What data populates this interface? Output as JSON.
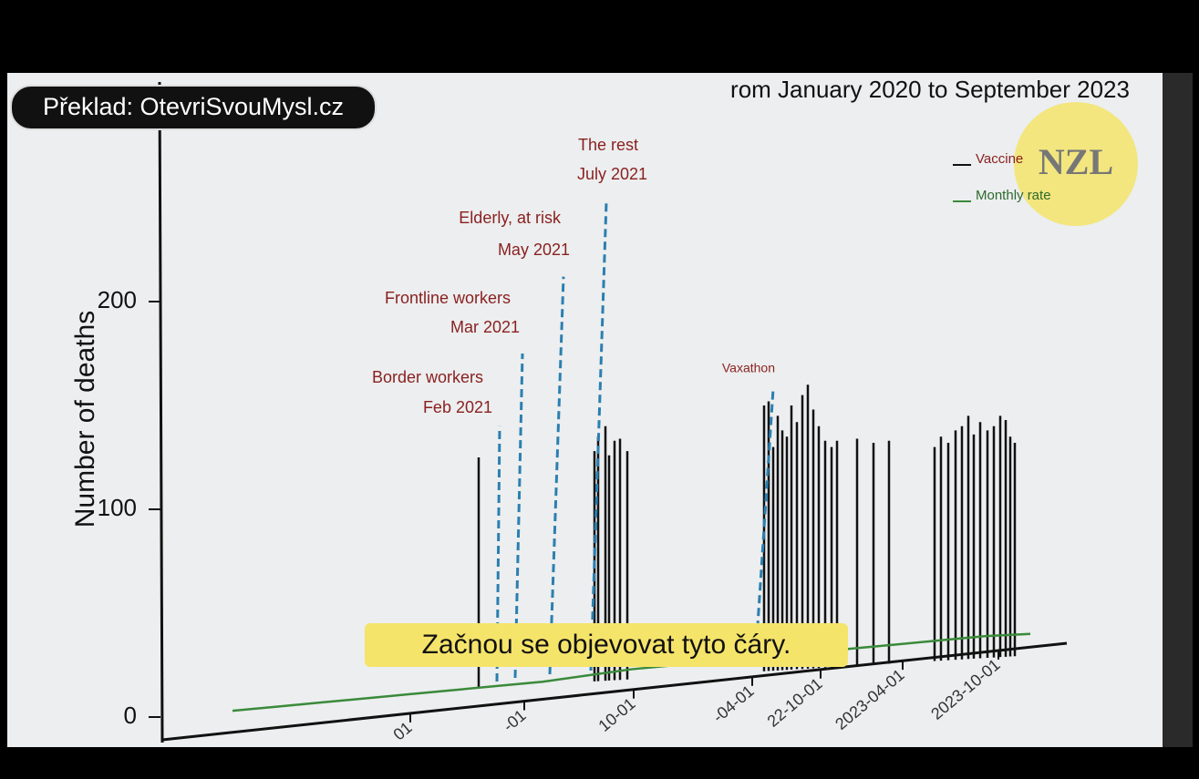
{
  "overlay": {
    "credit": "Překlad: OtevriSvouMysl.cz",
    "subtitle": "Začnou se objevovat tyto čáry.",
    "logo": "NZL"
  },
  "chart_data": {
    "type": "bar",
    "title": "rom January 2020 to September 2023",
    "y_label": "Number of deaths",
    "ylim": [
      0,
      300
    ],
    "yticks": [
      0,
      100,
      200
    ],
    "x_tick_labels": [
      "01",
      "-01",
      "10-01",
      "-04-01",
      "22-10-01",
      "2023-04-01",
      "2023-10-01"
    ],
    "series": [
      {
        "name": "Vaccine",
        "color": "#111111",
        "values": [
          125,
          128,
          135,
          140,
          126,
          133,
          134,
          128,
          150,
          152,
          130,
          145,
          138,
          135,
          150,
          142,
          155,
          160,
          148,
          140,
          133,
          130,
          133,
          134,
          132,
          133,
          130,
          135,
          132,
          138,
          140,
          145,
          136,
          142,
          138,
          140,
          145,
          143,
          135,
          132
        ]
      },
      {
        "name": "Monthly rate",
        "color": "#3a8a3a",
        "values": [
          3,
          5,
          7,
          9,
          11,
          13,
          15,
          17,
          20,
          23,
          25,
          27,
          29,
          31,
          33,
          35,
          37,
          39,
          40
        ]
      }
    ],
    "annotations": [
      {
        "text": "Border workers",
        "date": "Feb 2021",
        "value": 140
      },
      {
        "text": "Frontline workers",
        "date": "Mar 2021",
        "value": 175
      },
      {
        "text": "Elderly, at risk",
        "date": "May 2021",
        "value": 212
      },
      {
        "text": "The rest",
        "date": "July 2021",
        "value": 248
      },
      {
        "text": "Vaxathon",
        "value": 158
      }
    ]
  }
}
